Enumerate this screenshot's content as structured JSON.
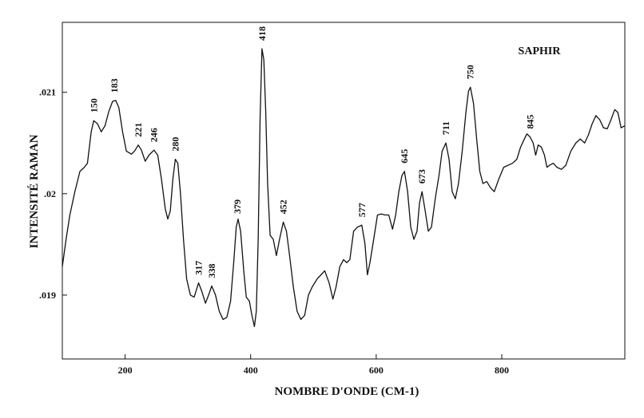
{
  "chart_data": {
    "type": "line",
    "annotation": "SAPHIR",
    "x_label": "NOMBRE D'ONDE (CM-1)",
    "y_label": "INTENSITÉ RAMAN",
    "color": "#111111",
    "xlim": [
      100,
      996
    ],
    "ylim": [
      0.01837,
      0.02169
    ],
    "xticks": [
      200,
      400,
      600,
      800
    ],
    "yticks": [
      {
        "value": 0.019,
        "label": ".019"
      },
      {
        "value": 0.02,
        "label": ".02"
      },
      {
        "value": 0.021,
        "label": ".021"
      }
    ],
    "x": [
      100,
      106,
      112,
      120,
      128,
      135,
      140,
      146,
      150,
      156,
      162,
      168,
      174,
      180,
      185,
      190,
      196,
      202,
      210,
      215,
      221,
      226,
      232,
      238,
      246,
      252,
      258,
      264,
      268,
      272,
      276,
      280,
      284,
      288,
      293,
      298,
      304,
      310,
      317,
      322,
      328,
      333,
      338,
      344,
      350,
      356,
      362,
      368,
      373,
      377,
      380,
      384,
      389,
      393,
      398,
      402,
      406,
      409,
      412,
      415,
      418,
      421,
      424,
      427,
      431,
      436,
      441,
      446,
      452,
      457,
      462,
      468,
      474,
      480,
      486,
      492,
      498,
      506,
      512,
      518,
      525,
      531,
      536,
      542,
      548,
      553,
      558,
      564,
      570,
      577,
      582,
      586,
      590,
      596,
      602,
      608,
      614,
      620,
      626,
      631,
      636,
      641,
      645,
      650,
      655,
      660,
      665,
      669,
      673,
      678,
      683,
      688,
      694,
      700,
      705,
      711,
      716,
      721,
      726,
      731,
      737,
      743,
      747,
      750,
      755,
      760,
      765,
      770,
      776,
      782,
      788,
      795,
      803,
      810,
      817,
      824,
      830,
      836,
      840,
      845,
      850,
      854,
      858,
      863,
      868,
      872,
      876,
      882,
      888,
      895,
      902,
      910,
      918,
      925,
      932,
      938,
      944,
      950,
      956,
      962,
      968,
      974,
      980,
      985,
      990,
      996
    ],
    "values": [
      0.01928,
      0.01955,
      0.01979,
      0.02002,
      0.02022,
      0.02026,
      0.0203,
      0.02061,
      0.02072,
      0.02069,
      0.02061,
      0.02067,
      0.02081,
      0.02091,
      0.02092,
      0.02085,
      0.02061,
      0.02042,
      0.02039,
      0.02042,
      0.02048,
      0.02043,
      0.02032,
      0.02038,
      0.02043,
      0.02038,
      0.02014,
      0.01985,
      0.01975,
      0.01983,
      0.02014,
      0.02034,
      0.0203,
      0.02002,
      0.01955,
      0.01916,
      0.019,
      0.01898,
      0.01912,
      0.01904,
      0.01892,
      0.019,
      0.01909,
      0.019,
      0.01884,
      0.01876,
      0.01878,
      0.01894,
      0.01932,
      0.01967,
      0.01975,
      0.01963,
      0.01924,
      0.01898,
      0.01894,
      0.0188,
      0.01869,
      0.01884,
      0.01955,
      0.02073,
      0.02143,
      0.02132,
      0.02081,
      0.0201,
      0.01959,
      0.01955,
      0.01939,
      0.01955,
      0.01972,
      0.01963,
      0.01939,
      0.01908,
      0.01884,
      0.01876,
      0.0188,
      0.019,
      0.01908,
      0.01916,
      0.0192,
      0.01924,
      0.01912,
      0.01896,
      0.01908,
      0.01928,
      0.01935,
      0.01932,
      0.01935,
      0.01963,
      0.01967,
      0.01969,
      0.01951,
      0.0192,
      0.01932,
      0.01955,
      0.01979,
      0.0198,
      0.01979,
      0.01979,
      0.01965,
      0.01979,
      0.02002,
      0.02018,
      0.02022,
      0.02002,
      0.01967,
      0.01955,
      0.01963,
      0.01991,
      0.02002,
      0.01983,
      0.01963,
      0.01967,
      0.01995,
      0.02018,
      0.02042,
      0.0205,
      0.02034,
      0.02002,
      0.01995,
      0.0201,
      0.02042,
      0.02081,
      0.02101,
      0.02105,
      0.02089,
      0.02054,
      0.02022,
      0.0201,
      0.02012,
      0.02006,
      0.02002,
      0.02014,
      0.02026,
      0.02028,
      0.0203,
      0.02034,
      0.02046,
      0.02054,
      0.02059,
      0.02056,
      0.0205,
      0.02038,
      0.02048,
      0.02046,
      0.02038,
      0.02026,
      0.02028,
      0.0203,
      0.02026,
      0.02024,
      0.02028,
      0.02042,
      0.0205,
      0.02054,
      0.0205,
      0.02058,
      0.02069,
      0.02077,
      0.02073,
      0.02065,
      0.02064,
      0.02073,
      0.02083,
      0.0208,
      0.02065,
      0.02067
    ],
    "peak_labels": [
      150,
      183,
      221,
      246,
      280,
      317,
      338,
      379,
      418,
      452,
      577,
      645,
      673,
      711,
      750,
      845
    ]
  }
}
